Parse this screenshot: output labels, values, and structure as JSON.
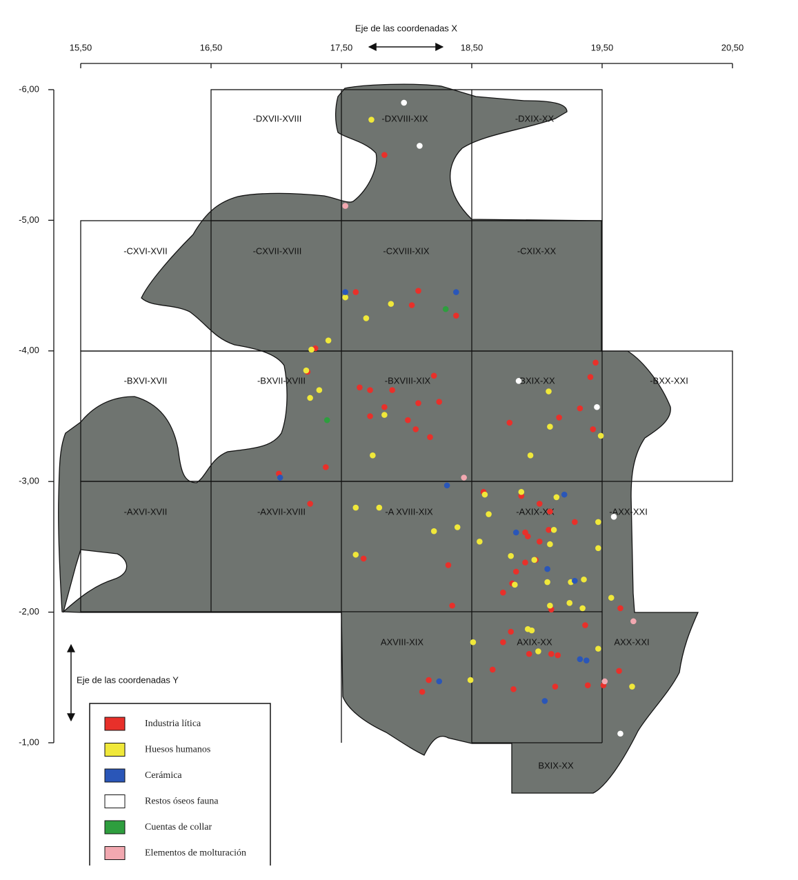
{
  "chart_data": {
    "type": "scatter",
    "x_label": "Eje de las coordenadas X",
    "y_label": "Eje de las coordenadas Y",
    "xlim": [
      15.5,
      20.5
    ],
    "ylim": [
      -1,
      -6
    ],
    "xticks": [
      {
        "value": 15.5,
        "label": "15,50"
      },
      {
        "value": 16.5,
        "label": "16,50"
      },
      {
        "value": 17.5,
        "label": "17,50"
      },
      {
        "value": 18.5,
        "label": "18,50"
      },
      {
        "value": 19.5,
        "label": "19,50"
      },
      {
        "value": 20.5,
        "label": "20,50"
      }
    ],
    "yticks": [
      {
        "value": -6,
        "label": "-6,00"
      },
      {
        "value": -5,
        "label": "-5,00"
      },
      {
        "value": -4,
        "label": "-4,00"
      },
      {
        "value": -3,
        "label": "-3,00"
      },
      {
        "value": -2,
        "label": "-2,00"
      },
      {
        "value": -1,
        "label": "-1,00"
      }
    ],
    "legend": "bottom-left",
    "cells": [
      "-DXVII-XVIII",
      "-DXVIII-XIX",
      "-DXIX-XX",
      "-CXVI-XVII",
      "-CXVII-XVIII",
      "-CXVIII-XIX",
      "-CXIX-XX",
      "-BXVI-XVII",
      "-BXVII-XVIII",
      "-BXVIII-XIX",
      "BXIX-XX",
      "-BXX-XXI",
      "-AXVI-XVII",
      "-AXVII-XVIII",
      "-A XVIII-XIX",
      "-AXIX-XX",
      "-AXX-XXI",
      "AXVIII-XIX",
      "AXIX-XX",
      "AXX-XXI",
      "BXIX-XX"
    ],
    "series": [
      {
        "name": "Industria lítica",
        "color": "#e8302a",
        "x": [
          17.83,
          17.61,
          18.09,
          18.04,
          18.38,
          17.3,
          17.24,
          17.38,
          17.02,
          17.26,
          17.64,
          17.72,
          17.89,
          17.83,
          17.72,
          18.01,
          18.07,
          18.09,
          18.25,
          18.21,
          18.18,
          18.79,
          19.17,
          19.33,
          19.41,
          19.45,
          19.43,
          18.59,
          18.88,
          19.02,
          19.1,
          19.29,
          18.91,
          18.93,
          19.09,
          19.02,
          18.32,
          17.67,
          18.84,
          18.91,
          18.99,
          18.74,
          18.81,
          19.11,
          18.35,
          19.37,
          19.64,
          18.8,
          18.74,
          18.94,
          19.11,
          19.16,
          18.66,
          19.63,
          19.39,
          19.51,
          19.14,
          18.82,
          18.17,
          18.12
        ],
        "y": [
          -5.5,
          -4.45,
          -4.46,
          -4.35,
          -4.27,
          -4.02,
          -3.84,
          -3.11,
          -3.06,
          -2.83,
          -3.72,
          -3.7,
          -3.7,
          -3.57,
          -3.5,
          -3.47,
          -3.4,
          -3.6,
          -3.61,
          -3.81,
          -3.34,
          -3.45,
          -3.49,
          -3.56,
          -3.8,
          -3.91,
          -3.4,
          -2.92,
          -2.89,
          -2.83,
          -2.77,
          -2.69,
          -2.61,
          -2.58,
          -2.63,
          -2.54,
          -2.36,
          -2.41,
          -2.31,
          -2.38,
          -2.4,
          -2.15,
          -2.22,
          -2.02,
          -2.05,
          -1.9,
          -2.03,
          -1.85,
          -1.77,
          -1.68,
          -1.68,
          -1.67,
          -1.56,
          -1.55,
          -1.44,
          -1.44,
          -1.43,
          -1.41,
          -1.48,
          -1.39
        ]
      },
      {
        "name": "Huesos humanos",
        "color": "#f0e83a",
        "x": [
          17.73,
          17.53,
          17.88,
          17.69,
          17.4,
          17.27,
          17.23,
          17.33,
          17.26,
          17.83,
          17.74,
          19.09,
          19.1,
          18.95,
          19.49,
          17.61,
          17.79,
          18.88,
          18.6,
          18.63,
          18.21,
          18.39,
          18.56,
          18.8,
          19.13,
          19.1,
          19.15,
          19.47,
          19.47,
          18.83,
          18.98,
          19.36,
          19.26,
          19.08,
          19.1,
          19.25,
          19.35,
          19.57,
          18.93,
          18.96,
          18.51,
          19.01,
          19.47,
          18.49,
          19.73,
          17.61
        ],
        "y": [
          -5.77,
          -4.41,
          -4.36,
          -4.25,
          -4.08,
          -4.01,
          -3.85,
          -3.7,
          -3.64,
          -3.51,
          -3.2,
          -3.69,
          -3.42,
          -3.2,
          -3.35,
          -2.8,
          -2.8,
          -2.92,
          -2.9,
          -2.75,
          -2.62,
          -2.65,
          -2.54,
          -2.43,
          -2.63,
          -2.52,
          -2.88,
          -2.69,
          -2.49,
          -2.21,
          -2.4,
          -2.25,
          -2.23,
          -2.23,
          -2.05,
          -2.07,
          -2.03,
          -2.11,
          -1.87,
          -1.86,
          -1.77,
          -1.7,
          -1.72,
          -1.48,
          -1.43,
          -2.44
        ]
      },
      {
        "name": "Cerámica",
        "color": "#2a56b8",
        "x": [
          17.53,
          18.38,
          17.03,
          18.31,
          19.21,
          18.84,
          19.08,
          19.29,
          19.33,
          19.38,
          18.25,
          19.06
        ],
        "y": [
          -4.45,
          -4.45,
          -3.03,
          -2.97,
          -2.9,
          -2.61,
          -2.33,
          -2.24,
          -1.64,
          -1.63,
          -1.47,
          -1.32
        ]
      },
      {
        "name": "Restos óseos fauna",
        "color": "#ffffff",
        "x": [
          17.98,
          18.1,
          18.86,
          19.46,
          19.59,
          19.64
        ],
        "y": [
          -5.9,
          -5.57,
          -3.77,
          -3.57,
          -2.73,
          -1.07
        ]
      },
      {
        "name": "Cuentas de collar",
        "color": "#2e9e3e",
        "x": [
          18.3,
          17.39
        ],
        "y": [
          -4.32,
          -3.47
        ]
      },
      {
        "name": "Elementos de molturación",
        "color": "#f2a8b0",
        "x": [
          17.53,
          18.44,
          19.74,
          19.52
        ],
        "y": [
          -5.11,
          -3.03,
          -1.93,
          -1.47
        ]
      }
    ]
  }
}
